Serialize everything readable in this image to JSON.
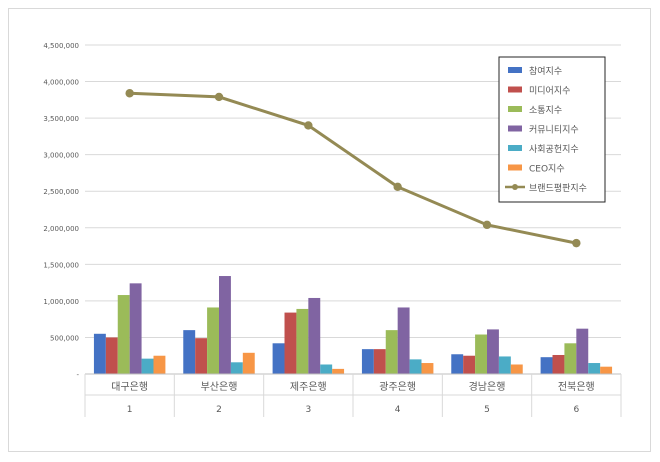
{
  "chart_data": {
    "type": "bar",
    "categories": [
      "대구은행",
      "부산은행",
      "제주은행",
      "광주은행",
      "경남은행",
      "전북은행"
    ],
    "category_numbers": [
      "1",
      "2",
      "3",
      "4",
      "5",
      "6"
    ],
    "ylim": [
      0,
      4500000
    ],
    "yticks": [
      0,
      500000,
      1000000,
      1500000,
      2000000,
      2500000,
      3000000,
      3500000,
      4000000,
      4500000
    ],
    "ytick_labels": [
      "-",
      "500,000",
      "1,000,000",
      "1,500,000",
      "2,000,000",
      "2,500,000",
      "3,000,000",
      "3,500,000",
      "4,000,000",
      "4,500,000"
    ],
    "grid": true,
    "legend_position": "top-right",
    "series": [
      {
        "name": "참여지수",
        "type": "bar",
        "color": "#4472c4",
        "values": [
          550000,
          600000,
          420000,
          340000,
          270000,
          230000
        ]
      },
      {
        "name": "미디어지수",
        "type": "bar",
        "color": "#c0504d",
        "values": [
          500000,
          490000,
          840000,
          340000,
          250000,
          260000
        ]
      },
      {
        "name": "소통지수",
        "type": "bar",
        "color": "#9bbb59",
        "values": [
          1080000,
          910000,
          890000,
          600000,
          540000,
          420000
        ]
      },
      {
        "name": "커뮤니티지수",
        "type": "bar",
        "color": "#8064a2",
        "values": [
          1240000,
          1340000,
          1040000,
          910000,
          610000,
          620000
        ]
      },
      {
        "name": "사회공헌지수",
        "type": "bar",
        "color": "#4bacc6",
        "values": [
          210000,
          160000,
          130000,
          200000,
          240000,
          150000
        ]
      },
      {
        "name": "CEO지수",
        "type": "bar",
        "color": "#f79646",
        "values": [
          250000,
          290000,
          70000,
          150000,
          130000,
          100000
        ]
      },
      {
        "name": "브랜드평판지수",
        "type": "line",
        "color": "#948a54",
        "values": [
          3840000,
          3790000,
          3400000,
          2560000,
          2040000,
          1790000
        ]
      }
    ]
  }
}
